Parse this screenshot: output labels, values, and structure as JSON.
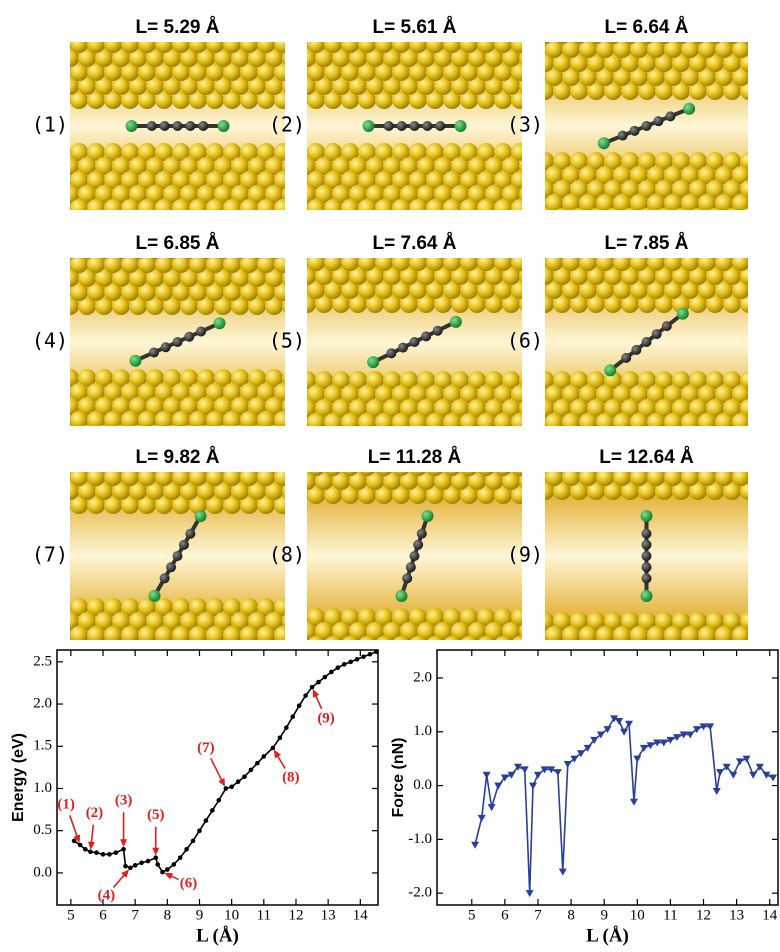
{
  "panels": [
    {
      "label": "(1)",
      "title": "L= 5.29 Å"
    },
    {
      "label": "(2)",
      "title": "L= 5.61 Å"
    },
    {
      "label": "(3)",
      "title": "L= 6.64 Å"
    },
    {
      "label": "(4)",
      "title": "L= 6.85 Å"
    },
    {
      "label": "(5)",
      "title": "L= 7.64 Å"
    },
    {
      "label": "(6)",
      "title": "L= 7.85 Å"
    },
    {
      "label": "(7)",
      "title": "L= 9.82 Å"
    },
    {
      "label": "(8)",
      "title": "L= 11.28 Å"
    },
    {
      "label": "(9)",
      "title": "L= 12.64 Å"
    }
  ],
  "chart_data": [
    {
      "type": "line",
      "xlabel": "L (Å)",
      "ylabel": "Energy (eV)",
      "color": "#000000",
      "marker": "circle",
      "x": [
        5.1,
        5.29,
        5.45,
        5.61,
        5.8,
        6.0,
        6.2,
        6.4,
        6.64,
        6.7,
        6.85,
        7.0,
        7.2,
        7.4,
        7.64,
        7.7,
        7.85,
        8.0,
        8.2,
        8.4,
        8.6,
        8.8,
        9.0,
        9.2,
        9.4,
        9.6,
        9.82,
        10.0,
        10.2,
        10.4,
        10.6,
        10.8,
        11.0,
        11.28,
        11.5,
        11.7,
        11.9,
        12.1,
        12.3,
        12.5,
        12.7,
        12.9,
        13.1,
        13.3,
        13.5,
        13.7,
        13.9,
        14.1,
        14.3,
        14.5
      ],
      "values": [
        0.38,
        0.33,
        0.28,
        0.25,
        0.24,
        0.22,
        0.22,
        0.24,
        0.28,
        0.08,
        0.06,
        0.09,
        0.12,
        0.14,
        0.18,
        0.1,
        0.01,
        0.04,
        0.1,
        0.18,
        0.28,
        0.38,
        0.5,
        0.62,
        0.74,
        0.86,
        1.0,
        1.02,
        1.08,
        1.14,
        1.22,
        1.3,
        1.38,
        1.48,
        1.6,
        1.72,
        1.85,
        1.98,
        2.1,
        2.2,
        2.26,
        2.32,
        2.38,
        2.43,
        2.47,
        2.5,
        2.53,
        2.56,
        2.59,
        2.62
      ],
      "xlim": [
        4.57,
        14.55
      ],
      "xticks": [
        5,
        6,
        7,
        8,
        9,
        10,
        11,
        12,
        13,
        14
      ],
      "ylim": [
        -0.38,
        2.64
      ],
      "yticks": [
        {
          "value": 0,
          "label": "0.0"
        },
        0.5,
        {
          "value": 1,
          "label": "1.0"
        },
        1.5,
        {
          "value": 2,
          "label": "2.0"
        },
        2.5
      ],
      "annotations": [
        {
          "text": "(1)",
          "x": 5.29,
          "y": 0.33
        },
        {
          "text": "(2)",
          "x": 5.61,
          "y": 0.25
        },
        {
          "text": "(3)",
          "x": 6.64,
          "y": 0.28
        },
        {
          "text": "(4)",
          "x": 6.85,
          "y": 0.06
        },
        {
          "text": "(5)",
          "x": 7.64,
          "y": 0.18
        },
        {
          "text": "(6)",
          "x": 7.85,
          "y": 0.01
        },
        {
          "text": "(7)",
          "x": 9.82,
          "y": 1.0
        },
        {
          "text": "(8)",
          "x": 11.28,
          "y": 1.48
        },
        {
          "text": "(9)",
          "x": 12.5,
          "y": 2.2
        }
      ]
    },
    {
      "type": "line",
      "xlabel": "L (Å)",
      "ylabel": "Force (nN)",
      "color": "#2a3f9a",
      "marker": "triangle-down",
      "x": [
        5.1,
        5.3,
        5.45,
        5.6,
        5.8,
        6.0,
        6.2,
        6.4,
        6.6,
        6.75,
        6.85,
        7.0,
        7.2,
        7.4,
        7.6,
        7.75,
        7.9,
        8.1,
        8.3,
        8.5,
        8.7,
        8.9,
        9.1,
        9.3,
        9.45,
        9.6,
        9.75,
        9.9,
        10.0,
        10.2,
        10.4,
        10.6,
        10.8,
        11.0,
        11.2,
        11.4,
        11.6,
        11.8,
        12.0,
        12.2,
        12.4,
        12.5,
        12.7,
        12.9,
        13.1,
        13.3,
        13.5,
        13.7,
        13.9,
        14.1
      ],
      "values": [
        -1.1,
        -0.6,
        0.2,
        -0.4,
        0.0,
        0.15,
        0.2,
        0.35,
        0.3,
        -2.0,
        0.0,
        0.2,
        0.3,
        0.3,
        0.25,
        -1.6,
        0.4,
        0.5,
        0.6,
        0.7,
        0.85,
        0.95,
        1.05,
        1.25,
        1.2,
        1.0,
        1.15,
        -0.3,
        0.5,
        0.7,
        0.75,
        0.8,
        0.8,
        0.85,
        0.9,
        0.95,
        0.95,
        1.05,
        1.1,
        1.1,
        -0.1,
        0.25,
        0.35,
        0.2,
        0.45,
        0.5,
        0.2,
        0.35,
        0.2,
        0.15
      ],
      "xlim": [
        3.95,
        14.25
      ],
      "xticks": [
        5,
        6,
        7,
        8,
        9,
        10,
        11,
        12,
        13,
        14
      ],
      "ylim": [
        -2.22,
        2.52
      ],
      "yticks": [
        {
          "value": -2,
          "label": "-2.0"
        },
        {
          "value": -1,
          "label": "-1.0"
        },
        {
          "value": 0,
          "label": "0.0"
        },
        {
          "value": 1,
          "label": "1.0"
        },
        {
          "value": 2,
          "label": "2.0"
        }
      ]
    }
  ]
}
